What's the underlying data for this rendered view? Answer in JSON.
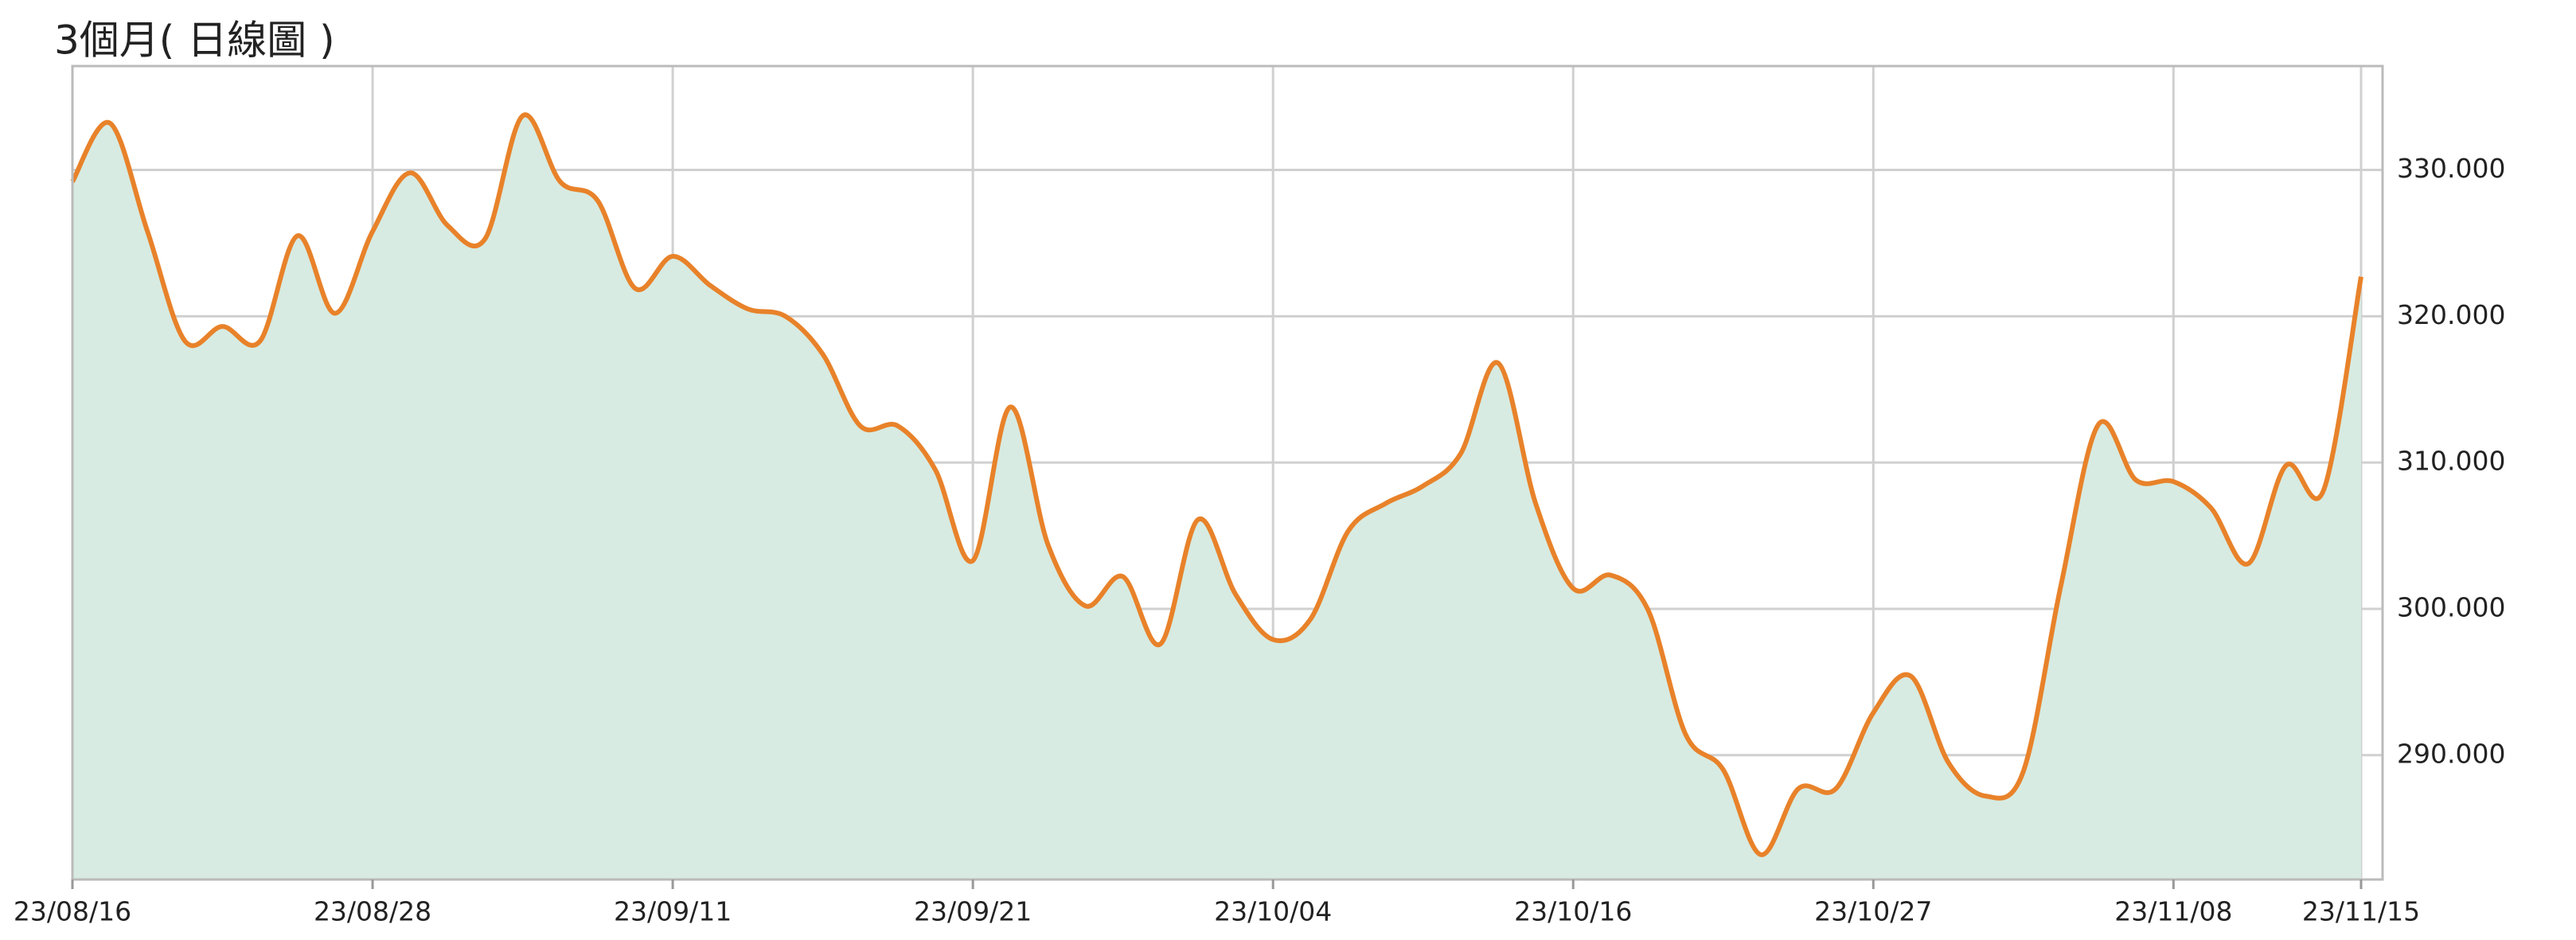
{
  "chart_data": {
    "type": "line",
    "title": "3個月( 日線圖 )",
    "categories": [
      "23/08/16",
      null,
      null,
      null,
      null,
      null,
      null,
      null,
      "23/08/28",
      null,
      null,
      null,
      null,
      null,
      null,
      null,
      "23/09/11",
      null,
      null,
      null,
      null,
      null,
      null,
      null,
      "23/09/21",
      null,
      null,
      null,
      null,
      null,
      null,
      null,
      "23/10/04",
      null,
      null,
      null,
      null,
      null,
      null,
      null,
      "23/10/16",
      null,
      null,
      null,
      null,
      null,
      null,
      null,
      "23/10/27",
      null,
      null,
      null,
      null,
      null,
      null,
      null,
      "23/11/08",
      null,
      null,
      null,
      null,
      "23/11/15"
    ],
    "series": [
      {
        "color": "#e8822a",
        "fill": "#d7ebe2",
        "values": [
          329.2,
          333.2,
          325.8,
          318.3,
          319.3,
          318.3,
          325.5,
          320.2,
          325.8,
          329.8,
          326.2,
          325.3,
          333.7,
          329.2,
          327.9,
          321.9,
          324.1,
          322.1,
          320.5,
          320.0,
          317.4,
          312.5,
          312.5,
          309.5,
          303.3,
          313.8,
          304.4,
          300.2,
          302.2,
          297.6,
          306.1,
          301.0,
          297.9,
          299.3,
          305.3,
          307.2,
          308.4,
          310.6,
          316.8,
          307.2,
          301.4,
          302.3,
          299.9,
          291.4,
          289.0,
          283.2,
          287.7,
          287.7,
          292.9,
          295.4,
          289.5,
          287.2,
          288.9,
          301.6,
          312.6,
          308.8,
          308.7,
          306.9,
          303.1,
          309.8,
          308.1,
          322.7
        ]
      }
    ],
    "ylim": [
      281.5,
      337.1
    ],
    "yticks": [
      {
        "value": 290,
        "label": "290.000"
      },
      {
        "value": 300,
        "label": "300.000"
      },
      {
        "value": 310,
        "label": "310.000"
      },
      {
        "value": 320,
        "label": "320.000"
      },
      {
        "value": 330,
        "label": "330.000"
      }
    ],
    "grid": true
  }
}
